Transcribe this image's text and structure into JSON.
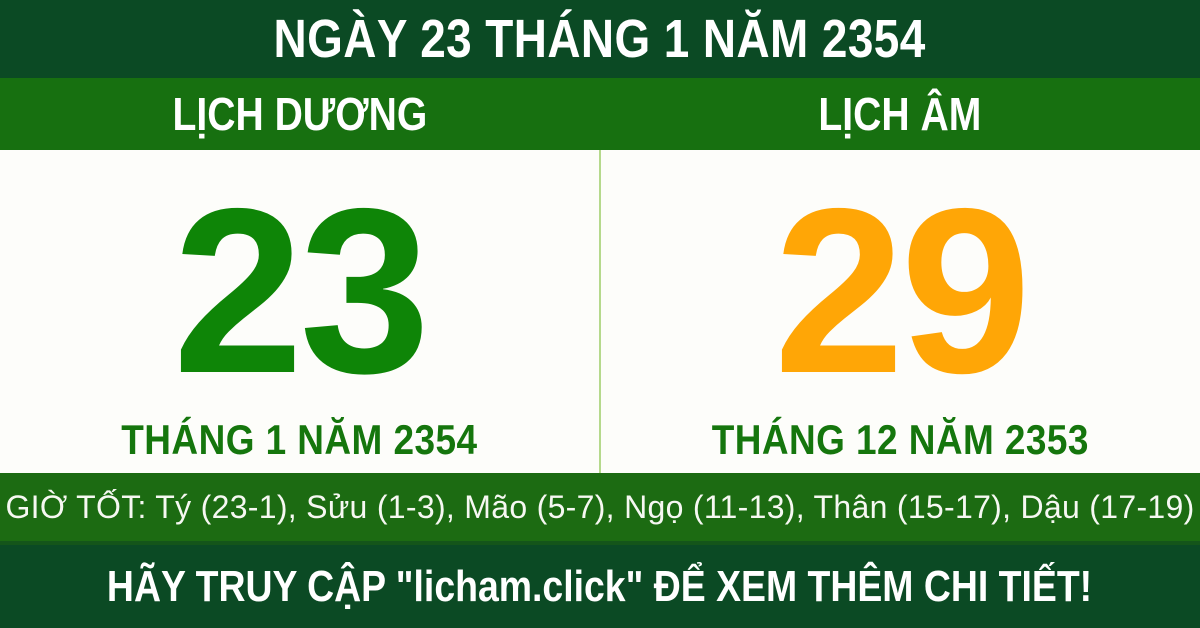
{
  "header": {
    "title": "NGÀY 23 THÁNG 1 NĂM 2354"
  },
  "calendar": {
    "solar": {
      "label": "LỊCH DƯƠNG",
      "day": "23",
      "month_year": "THÁNG 1 NĂM 2354",
      "day_color": "#0e8507"
    },
    "lunar": {
      "label": "LỊCH ÂM",
      "day": "29",
      "month_year": "THÁNG 12 NĂM 2353",
      "day_color": "#ffa606"
    }
  },
  "good_hours": {
    "text": "GIỜ TỐT: Tý (23-1), Sửu (1-3), Mão (5-7), Ngọ (11-13), Thân (15-17), Dậu (17-19)"
  },
  "footer": {
    "text": "HÃY TRUY CẬP \"licham.click\" ĐỂ XEM THÊM CHI TIẾT!"
  },
  "colors": {
    "dark_green": "#0b4a24",
    "bright_green": "#177010",
    "strip_green": "#1c6b12",
    "solar_day_green": "#0e8507",
    "lunar_day_orange": "#ffa606",
    "month_text_green": "#15760d",
    "divider_light_green": "#b5d98c",
    "text_white": "#ffffff"
  }
}
